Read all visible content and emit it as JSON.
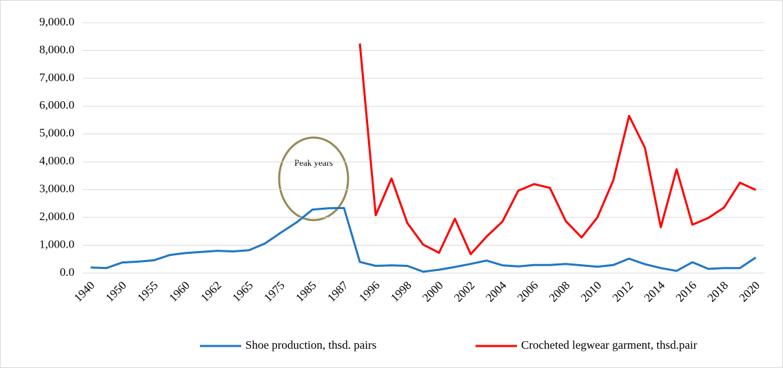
{
  "chart_data": {
    "type": "line",
    "categories": [
      "1940",
      null,
      "1950",
      null,
      "1955",
      null,
      "1960",
      null,
      "1962",
      null,
      "1965",
      null,
      "1975",
      null,
      "1985",
      null,
      "1987",
      null,
      "1996",
      null,
      "1998",
      null,
      "2000",
      null,
      "2002",
      null,
      "2004",
      null,
      "2006",
      null,
      "2008",
      null,
      "2010",
      null,
      "2012",
      null,
      "2014",
      null,
      "2016",
      null,
      "2018",
      null,
      "2020"
    ],
    "series": [
      {
        "name": "Shoe production, thsd. pairs",
        "color": "#1f77c4",
        "values": [
          200,
          180,
          380,
          410,
          460,
          650,
          720,
          760,
          800,
          780,
          820,
          1060,
          1450,
          1820,
          2280,
          2330,
          2340,
          400,
          260,
          280,
          260,
          50,
          120,
          220,
          330,
          450,
          280,
          240,
          290,
          290,
          330,
          280,
          230,
          290,
          520,
          320,
          180,
          80,
          390,
          150,
          180,
          180,
          560
        ]
      },
      {
        "name": "Crocheted legwear garment, thsd.pair",
        "color": "#ff0000",
        "values": [
          null,
          null,
          null,
          null,
          null,
          null,
          null,
          null,
          null,
          null,
          null,
          null,
          null,
          null,
          null,
          null,
          null,
          8250,
          2080,
          3400,
          1800,
          1020,
          730,
          1950,
          680,
          1310,
          1850,
          2960,
          3200,
          3060,
          1870,
          1280,
          2000,
          3330,
          5650,
          4500,
          1650,
          3730,
          1740,
          1980,
          2360,
          3250,
          2990
        ]
      }
    ],
    "ylim": [
      0,
      9000
    ],
    "yticks": [
      {
        "value": 0,
        "label": "0.0"
      },
      {
        "value": 1000,
        "label": "1,000.0"
      },
      {
        "value": 2000,
        "label": "2,000.0"
      },
      {
        "value": 3000,
        "label": "3,000.0"
      },
      {
        "value": 4000,
        "label": "4,000.0"
      },
      {
        "value": 5000,
        "label": "5,000.0"
      },
      {
        "value": 6000,
        "label": "6,000.0"
      },
      {
        "value": 7000,
        "label": "7,000.0"
      },
      {
        "value": 8000,
        "label": "8,000.0"
      },
      {
        "value": 9000,
        "label": "9,000.0"
      }
    ],
    "grid": true,
    "legend": "bottom",
    "annotation": "Peak years"
  }
}
